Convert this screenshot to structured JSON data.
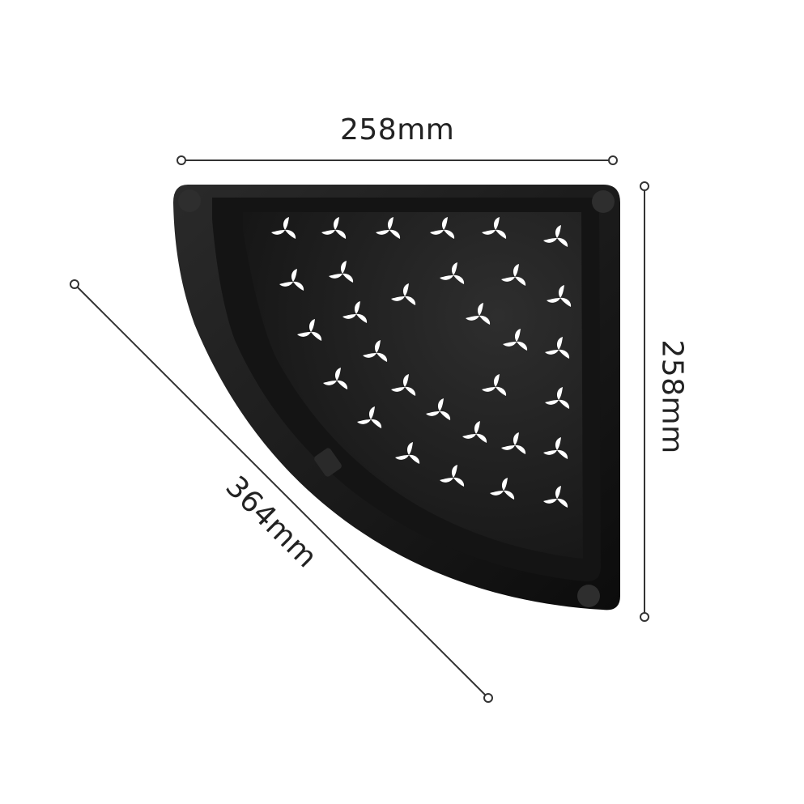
{
  "dimensions": {
    "width_label": "258mm",
    "height_label": "258mm",
    "diagonal_label": "364mm"
  },
  "colors": {
    "shelf_outer": "#1b1b1b",
    "shelf_inner": "#262626",
    "shelf_rim": "#101010",
    "perforation": "#ffffff",
    "dimension_line": "#333333"
  },
  "product": {
    "shape": "quarter-circle corner shelf",
    "pattern_icon": "propeller-perforation-icon"
  }
}
